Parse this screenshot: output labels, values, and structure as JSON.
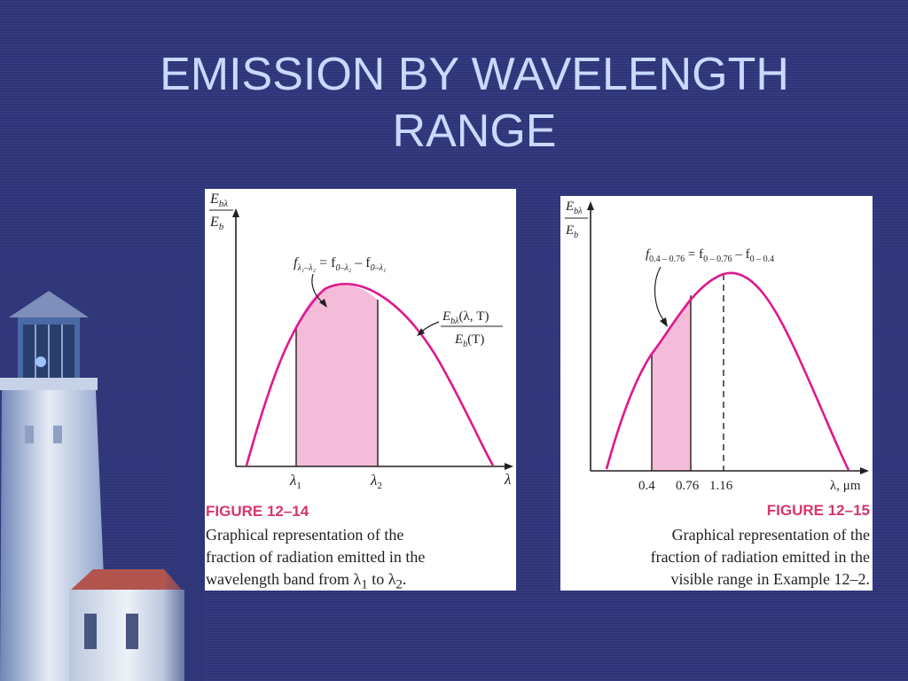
{
  "slide": {
    "title_line1": "EMISSION BY WAVELENGTH",
    "title_line2": "RANGE",
    "background_color": "#2f3579",
    "title_color": "#c9d9ff"
  },
  "figure1": {
    "y_axis_num": "E",
    "y_axis_num_sub": "bλ",
    "y_axis_den": "E",
    "y_axis_den_sub": "b",
    "x_axis_symbol": "λ",
    "lambda1": "λ",
    "lambda1_sub": "1",
    "lambda2": "λ",
    "lambda2_sub": "2",
    "formula_text": "f",
    "formula_sub": "λ₁–λ₂",
    "formula_rest1": " = f",
    "formula_sub2": "0–λ₂",
    "formula_rest2": " – f",
    "formula_sub3": "0–λ₁",
    "curve_label_num": "E",
    "curve_label_num_sub": "bλ",
    "curve_label_num_args": "(λ, T)",
    "curve_label_den": "E",
    "curve_label_den_sub": "b",
    "curve_label_den_args": "(T)",
    "figure_label": "FIGURE 12–14",
    "caption_line1": "Graphical representation of the",
    "caption_line2": "fraction of radiation emitted in the",
    "caption_line3": "wavelength band from λ",
    "caption_sub1": "1",
    "caption_mid": " to λ",
    "caption_sub2": "2",
    "caption_end": "."
  },
  "figure2": {
    "y_axis_num": "E",
    "y_axis_num_sub": "bλ",
    "y_axis_den": "E",
    "y_axis_den_sub": "b",
    "x_axis_label": "λ, μm",
    "tick1": "0.4",
    "tick2": "0.76",
    "tick3": "1.16",
    "formula_text": "f",
    "formula_sub": "0.4 – 0.76",
    "formula_rest1": " = f",
    "formula_sub2": "0 – 0.76",
    "formula_rest2": " – f",
    "formula_sub3": "0 – 0.4",
    "figure_label": "FIGURE 12–15",
    "caption_line1": "Graphical representation of the",
    "caption_line2": "fraction of radiation emitted in the",
    "caption_line3": "visible range in Example 12–2."
  },
  "colors": {
    "curve": "#e0188e",
    "fill": "#f4bcd9",
    "figure_label": "#d6366f"
  }
}
